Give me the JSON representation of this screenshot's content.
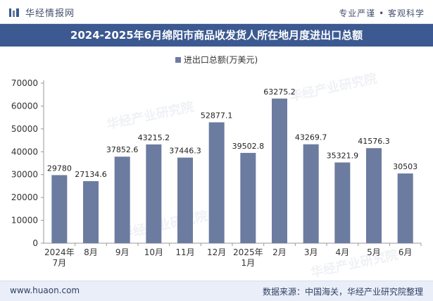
{
  "header": {
    "brand": "华经情报网",
    "tagline": "专业严谨 • 客观科学"
  },
  "title": "2024-2025年6月绵阳市商品收发货人所在地月度进出口总额",
  "legend": {
    "label": "进出口总额(万美元)"
  },
  "watermark": "华经产业研究院",
  "footer": {
    "website": "www.huaon.com",
    "source": "数据来源：中国海关，华经产业研究院整理"
  },
  "colors": {
    "bar": "#6c7ba0",
    "title_bg": "#3c5a91",
    "footer_bg": "#e9eef8"
  },
  "chart_data": {
    "type": "bar",
    "categories": [
      "2024年\n7月",
      "8月",
      "9月",
      "10月",
      "11月",
      "12月",
      "2025年\n1月",
      "2月",
      "3月",
      "4月",
      "5月",
      "6月"
    ],
    "values": [
      29780,
      27134.6,
      37852.6,
      43215.2,
      37446.3,
      52877.1,
      39502.8,
      63275.2,
      43269.7,
      35321.9,
      41576.3,
      30503
    ],
    "value_labels": [
      "29780",
      "27134.6",
      "37852.6",
      "43215.2",
      "37446.3",
      "52877.1",
      "39502.8",
      "63275.2",
      "43269.7",
      "35321.9",
      "41576.3",
      "30503"
    ],
    "series_name": "进出口总额(万美元)",
    "ylim": [
      0,
      70000
    ],
    "yticks": [
      0,
      10000,
      20000,
      30000,
      40000,
      50000,
      60000,
      70000
    ],
    "xlabel": "",
    "ylabel": "",
    "grid": false
  }
}
